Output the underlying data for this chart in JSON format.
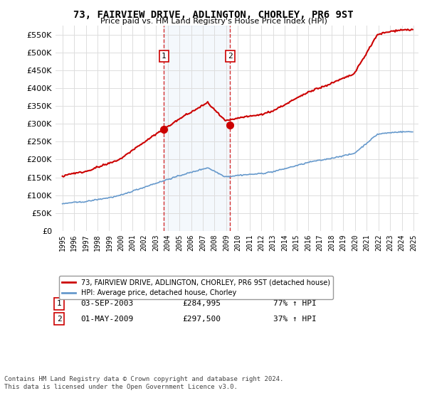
{
  "title": "73, FAIRVIEW DRIVE, ADLINGTON, CHORLEY, PR6 9ST",
  "subtitle": "Price paid vs. HM Land Registry's House Price Index (HPI)",
  "sale1_date": "2003-09-03",
  "sale1_price": 284995,
  "sale1_label": "1",
  "sale1_hpi_pct": "77% ↑ HPI",
  "sale2_date": "2009-05-01",
  "sale2_price": 297500,
  "sale2_label": "2",
  "sale2_hpi_pct": "37% ↑ HPI",
  "sale1_display": "03-SEP-2003",
  "sale2_display": "01-MAY-2009",
  "legend_label_red": "73, FAIRVIEW DRIVE, ADLINGTON, CHORLEY, PR6 9ST (detached house)",
  "legend_label_blue": "HPI: Average price, detached house, Chorley",
  "footnote": "Contains HM Land Registry data © Crown copyright and database right 2024.\nThis data is licensed under the Open Government Licence v3.0.",
  "red_color": "#cc0000",
  "blue_color": "#6699cc",
  "sale_dot_color": "#cc0000",
  "vline_color": "#cc0000",
  "ylim": [
    0,
    575000
  ],
  "yticks": [
    0,
    50000,
    100000,
    150000,
    200000,
    250000,
    300000,
    350000,
    400000,
    450000,
    500000,
    550000
  ],
  "xlabel_start_year": 1995,
  "xlabel_end_year": 2025
}
